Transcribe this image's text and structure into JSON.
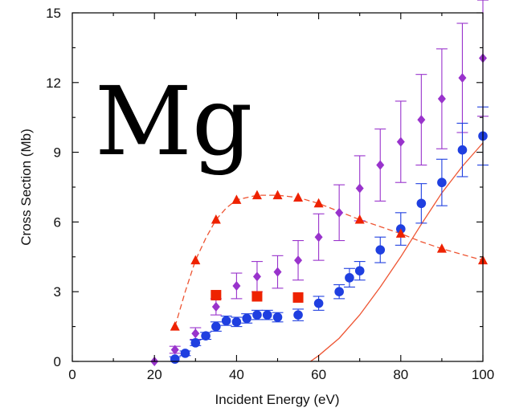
{
  "chart_data": {
    "type": "scatter",
    "title": "",
    "annotation": "Mg",
    "xlabel": "Incident Energy (eV)",
    "ylabel": "Cross Section (Mb)",
    "xlim": [
      0,
      100
    ],
    "ylim": [
      0,
      15
    ],
    "x_ticks": [
      0,
      20,
      40,
      60,
      80,
      100
    ],
    "y_ticks": [
      0,
      3,
      6,
      9,
      12,
      15
    ],
    "grid": false,
    "legend": "none",
    "series": [
      {
        "marker": "diamond",
        "color": "#9933cc",
        "points": [
          {
            "x": 20,
            "y": 0.0,
            "err": 0
          },
          {
            "x": 25,
            "y": 0.5,
            "err": 0.15
          },
          {
            "x": 30,
            "y": 1.2,
            "err": 0.25
          },
          {
            "x": 35,
            "y": 2.35,
            "err": 0.35
          },
          {
            "x": 40,
            "y": 3.25,
            "err": 0.55
          },
          {
            "x": 45,
            "y": 3.65,
            "err": 0.65
          },
          {
            "x": 50,
            "y": 3.85,
            "err": 0.7
          },
          {
            "x": 55,
            "y": 4.35,
            "err": 0.85
          },
          {
            "x": 60,
            "y": 5.35,
            "err": 1.0
          },
          {
            "x": 65,
            "y": 6.4,
            "err": 1.2
          },
          {
            "x": 70,
            "y": 7.45,
            "err": 1.4
          },
          {
            "x": 75,
            "y": 8.45,
            "err": 1.55
          },
          {
            "x": 80,
            "y": 9.45,
            "err": 1.75
          },
          {
            "x": 85,
            "y": 10.4,
            "err": 1.95
          },
          {
            "x": 90,
            "y": 11.3,
            "err": 2.15
          },
          {
            "x": 95,
            "y": 12.2,
            "err": 2.35
          },
          {
            "x": 100,
            "y": 13.05,
            "err": 2.5
          }
        ]
      },
      {
        "marker": "circle",
        "color": "#1f3fe0",
        "points": [
          {
            "x": 25,
            "y": 0.1,
            "err": 0.1
          },
          {
            "x": 27.5,
            "y": 0.35,
            "err": 0.1
          },
          {
            "x": 30,
            "y": 0.8,
            "err": 0.12
          },
          {
            "x": 32.5,
            "y": 1.1,
            "err": 0.15
          },
          {
            "x": 35,
            "y": 1.5,
            "err": 0.2
          },
          {
            "x": 37.5,
            "y": 1.75,
            "err": 0.2
          },
          {
            "x": 40,
            "y": 1.7,
            "err": 0.2
          },
          {
            "x": 42.5,
            "y": 1.85,
            "err": 0.2
          },
          {
            "x": 45,
            "y": 2.0,
            "err": 0.2
          },
          {
            "x": 47.5,
            "y": 2.0,
            "err": 0.2
          },
          {
            "x": 50,
            "y": 1.9,
            "err": 0.2
          },
          {
            "x": 55,
            "y": 2.0,
            "err": 0.25
          },
          {
            "x": 60,
            "y": 2.5,
            "err": 0.3
          },
          {
            "x": 65,
            "y": 3.0,
            "err": 0.3
          },
          {
            "x": 67.5,
            "y": 3.6,
            "err": 0.4
          },
          {
            "x": 70,
            "y": 3.9,
            "err": 0.4
          },
          {
            "x": 75,
            "y": 4.8,
            "err": 0.55
          },
          {
            "x": 80,
            "y": 5.7,
            "err": 0.7
          },
          {
            "x": 85,
            "y": 6.8,
            "err": 0.85
          },
          {
            "x": 90,
            "y": 7.7,
            "err": 1.0
          },
          {
            "x": 95,
            "y": 9.1,
            "err": 1.15
          },
          {
            "x": 100,
            "y": 9.7,
            "err": 1.25
          }
        ]
      },
      {
        "marker": "square",
        "color": "#ee2200",
        "points": [
          {
            "x": 35,
            "y": 2.85
          },
          {
            "x": 45,
            "y": 2.8
          },
          {
            "x": 55,
            "y": 2.75
          }
        ]
      },
      {
        "marker": "triangle",
        "color": "#ee2200",
        "points": [
          {
            "x": 25,
            "y": 1.5
          },
          {
            "x": 30,
            "y": 4.35
          },
          {
            "x": 35,
            "y": 6.1
          },
          {
            "x": 40,
            "y": 6.95
          },
          {
            "x": 45,
            "y": 7.15
          },
          {
            "x": 50,
            "y": 7.15
          },
          {
            "x": 55,
            "y": 7.05
          },
          {
            "x": 60,
            "y": 6.8
          },
          {
            "x": 70,
            "y": 6.1
          },
          {
            "x": 80,
            "y": 5.5
          },
          {
            "x": 90,
            "y": 4.85
          },
          {
            "x": 100,
            "y": 4.35
          }
        ]
      }
    ],
    "curves": [
      {
        "style": "dashed",
        "color": "#ee5533",
        "points": [
          [
            25,
            1.5
          ],
          [
            27.5,
            3.0
          ],
          [
            30,
            4.35
          ],
          [
            32.5,
            5.3
          ],
          [
            35,
            6.1
          ],
          [
            37.5,
            6.6
          ],
          [
            40,
            6.95
          ],
          [
            45,
            7.15
          ],
          [
            50,
            7.15
          ],
          [
            55,
            7.05
          ],
          [
            60,
            6.8
          ],
          [
            65,
            6.45
          ],
          [
            70,
            6.1
          ],
          [
            75,
            5.8
          ],
          [
            80,
            5.5
          ],
          [
            85,
            5.15
          ],
          [
            90,
            4.85
          ],
          [
            95,
            4.6
          ],
          [
            100,
            4.35
          ]
        ]
      },
      {
        "style": "solid",
        "color": "#ee5533",
        "points": [
          [
            58,
            0.0
          ],
          [
            60,
            0.25
          ],
          [
            65,
            1.0
          ],
          [
            70,
            2.0
          ],
          [
            75,
            3.2
          ],
          [
            80,
            4.5
          ],
          [
            85,
            5.9
          ],
          [
            90,
            7.25
          ],
          [
            95,
            8.4
          ],
          [
            100,
            9.4
          ]
        ]
      }
    ]
  }
}
